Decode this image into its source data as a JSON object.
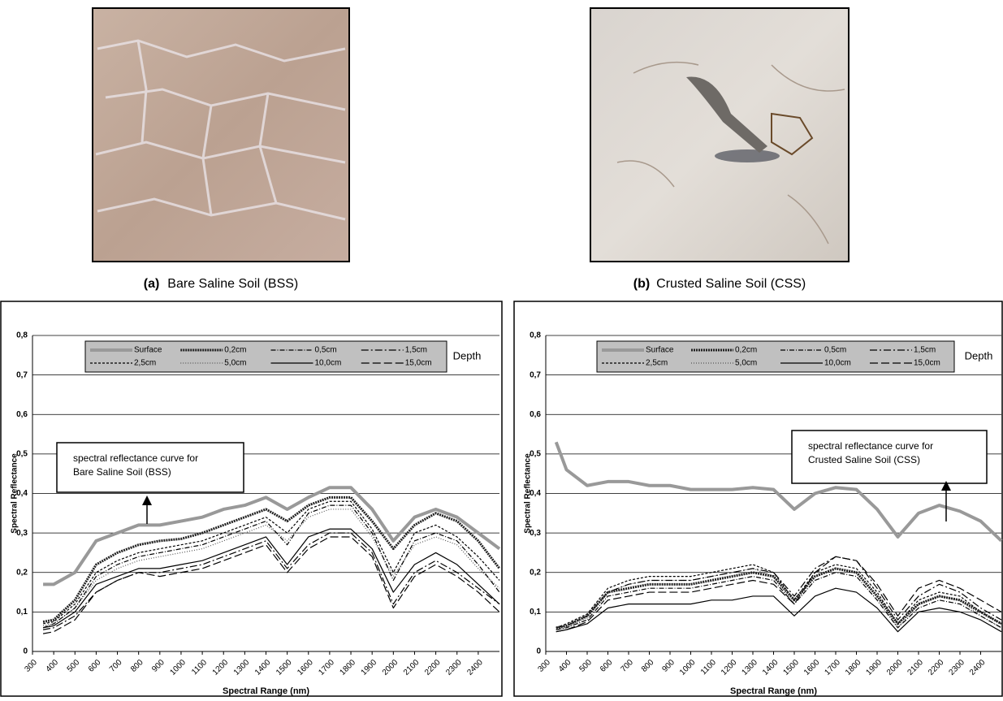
{
  "photos": [
    {
      "label": "(a)",
      "caption": "Bare Saline Soil (BSS)"
    },
    {
      "label": "(b)",
      "caption": "Crusted Saline Soil (CSS)"
    }
  ],
  "chart_data": [
    {
      "type": "line",
      "y_label": "Spectral Reflectance",
      "x_label": "Spectral Range (nm)",
      "legend_title": "Depth",
      "annotation": [
        "spectral reflectance curve for",
        "Bare Saline Soil (BSS)"
      ],
      "grid": true,
      "xlim": [
        300,
        2500
      ],
      "xticks": [
        300,
        400,
        500,
        600,
        700,
        800,
        900,
        1000,
        1100,
        1200,
        1300,
        1400,
        1500,
        1600,
        1700,
        1800,
        1900,
        2000,
        2100,
        2200,
        2300,
        2400
      ],
      "ylim": [
        0,
        0.8
      ],
      "yticks": [
        0,
        {
          "value": 0.1,
          "label": "0,1"
        },
        {
          "value": 0.2,
          "label": "0,2"
        },
        {
          "value": 0.3,
          "label": "0,3"
        },
        {
          "value": 0.4,
          "label": "0,4"
        },
        {
          "value": 0.5,
          "label": "0,5"
        },
        {
          "value": 0.6,
          "label": "0,6"
        },
        {
          "value": 0.7,
          "label": "0,7"
        },
        {
          "value": 0.8,
          "label": "0,8"
        }
      ],
      "x": [
        350,
        400,
        500,
        600,
        700,
        800,
        900,
        1000,
        1100,
        1200,
        1300,
        1400,
        1500,
        1600,
        1700,
        1800,
        1900,
        2000,
        2100,
        2200,
        2300,
        2400,
        2500
      ],
      "series": [
        {
          "name": "Surface",
          "color": "#999999",
          "style": "thick",
          "values": [
            0.17,
            0.17,
            0.2,
            0.28,
            0.3,
            0.32,
            0.32,
            0.33,
            0.34,
            0.36,
            0.37,
            0.39,
            0.36,
            0.39,
            0.415,
            0.415,
            0.36,
            0.28,
            0.34,
            0.36,
            0.34,
            0.3,
            0.26
          ]
        },
        {
          "name": "0,2cm",
          "color": "#222222",
          "style": "beaded",
          "values": [
            0.075,
            0.08,
            0.13,
            0.22,
            0.25,
            0.27,
            0.28,
            0.285,
            0.3,
            0.32,
            0.34,
            0.36,
            0.33,
            0.37,
            0.39,
            0.39,
            0.33,
            0.26,
            0.32,
            0.35,
            0.33,
            0.28,
            0.21
          ]
        },
        {
          "name": "0,5cm",
          "color": "#000000",
          "style": "dash-dot",
          "values": [
            0.06,
            0.07,
            0.11,
            0.19,
            0.22,
            0.24,
            0.25,
            0.26,
            0.27,
            0.29,
            0.31,
            0.33,
            0.27,
            0.35,
            0.37,
            0.37,
            0.3,
            0.18,
            0.28,
            0.3,
            0.28,
            0.22,
            0.15
          ]
        },
        {
          "name": "1,5cm",
          "color": "#000000",
          "style": "long-dash-dot",
          "values": [
            0.055,
            0.06,
            0.09,
            0.15,
            0.18,
            0.2,
            0.2,
            0.21,
            0.22,
            0.24,
            0.26,
            0.28,
            0.21,
            0.27,
            0.3,
            0.3,
            0.25,
            0.12,
            0.2,
            0.23,
            0.2,
            0.16,
            0.12
          ]
        },
        {
          "name": "2,5cm",
          "color": "#000000",
          "style": "dashed",
          "values": [
            0.07,
            0.075,
            0.12,
            0.2,
            0.23,
            0.25,
            0.26,
            0.27,
            0.28,
            0.3,
            0.32,
            0.34,
            0.3,
            0.36,
            0.38,
            0.38,
            0.31,
            0.2,
            0.3,
            0.32,
            0.29,
            0.24,
            0.18
          ]
        },
        {
          "name": "5,0cm",
          "color": "#555555",
          "style": "dotted",
          "values": [
            0.065,
            0.07,
            0.11,
            0.18,
            0.21,
            0.23,
            0.24,
            0.25,
            0.26,
            0.28,
            0.3,
            0.32,
            0.28,
            0.34,
            0.36,
            0.36,
            0.29,
            0.19,
            0.27,
            0.29,
            0.27,
            0.21,
            0.16
          ]
        },
        {
          "name": "10,0cm",
          "color": "#000000",
          "style": "solid",
          "values": [
            0.06,
            0.065,
            0.1,
            0.17,
            0.19,
            0.21,
            0.21,
            0.22,
            0.23,
            0.25,
            0.27,
            0.29,
            0.22,
            0.29,
            0.31,
            0.31,
            0.26,
            0.15,
            0.22,
            0.25,
            0.22,
            0.17,
            0.12
          ]
        },
        {
          "name": "15,0cm",
          "color": "#000000",
          "style": "long-dash",
          "values": [
            0.045,
            0.05,
            0.08,
            0.15,
            0.18,
            0.2,
            0.19,
            0.2,
            0.21,
            0.23,
            0.25,
            0.27,
            0.2,
            0.26,
            0.29,
            0.29,
            0.24,
            0.11,
            0.19,
            0.22,
            0.19,
            0.15,
            0.1
          ]
        }
      ]
    },
    {
      "type": "line",
      "y_label": "Spectral Reflectance",
      "x_label": "Spectral Range (nm)",
      "legend_title": "Depth",
      "annotation": [
        "spectral reflectance curve for",
        "Crusted Saline Soil (CSS)"
      ],
      "grid": true,
      "xlim": [
        300,
        2500
      ],
      "xticks": [
        300,
        400,
        500,
        600,
        700,
        800,
        900,
        1000,
        1100,
        1200,
        1300,
        1400,
        1500,
        1600,
        1700,
        1800,
        1900,
        2000,
        2100,
        2200,
        2300,
        2400
      ],
      "ylim": [
        0,
        0.8
      ],
      "yticks": [
        0,
        {
          "value": 0.1,
          "label": "0,1"
        },
        {
          "value": 0.2,
          "label": "0,2"
        },
        {
          "value": 0.3,
          "label": "0,3"
        },
        {
          "value": 0.4,
          "label": "0,4"
        },
        {
          "value": 0.5,
          "label": "0,5"
        },
        {
          "value": 0.6,
          "label": "0,6"
        },
        {
          "value": 0.7,
          "label": "0,7"
        },
        {
          "value": 0.8,
          "label": "0,8"
        }
      ],
      "x": [
        350,
        400,
        500,
        600,
        700,
        800,
        900,
        1000,
        1100,
        1200,
        1300,
        1400,
        1500,
        1600,
        1700,
        1800,
        1900,
        2000,
        2100,
        2200,
        2300,
        2400,
        2500
      ],
      "series": [
        {
          "name": "Surface",
          "color": "#999999",
          "style": "thick",
          "values": [
            0.53,
            0.46,
            0.42,
            0.43,
            0.43,
            0.42,
            0.42,
            0.41,
            0.41,
            0.41,
            0.415,
            0.41,
            0.36,
            0.4,
            0.415,
            0.41,
            0.36,
            0.29,
            0.35,
            0.37,
            0.355,
            0.33,
            0.28
          ]
        },
        {
          "name": "0,2cm",
          "color": "#222222",
          "style": "beaded",
          "values": [
            0.06,
            0.065,
            0.09,
            0.15,
            0.16,
            0.17,
            0.17,
            0.17,
            0.18,
            0.19,
            0.2,
            0.19,
            0.13,
            0.19,
            0.21,
            0.2,
            0.14,
            0.07,
            0.12,
            0.14,
            0.13,
            0.1,
            0.07
          ]
        },
        {
          "name": "0,5cm",
          "color": "#000000",
          "style": "dash-dot",
          "values": [
            0.055,
            0.06,
            0.08,
            0.14,
            0.15,
            0.16,
            0.16,
            0.16,
            0.17,
            0.18,
            0.19,
            0.18,
            0.12,
            0.18,
            0.2,
            0.19,
            0.13,
            0.06,
            0.11,
            0.13,
            0.12,
            0.09,
            0.06
          ]
        },
        {
          "name": "1,5cm",
          "color": "#000000",
          "style": "long-dash-dot",
          "values": [
            0.06,
            0.065,
            0.09,
            0.15,
            0.17,
            0.18,
            0.18,
            0.18,
            0.19,
            0.2,
            0.21,
            0.2,
            0.14,
            0.21,
            0.24,
            0.23,
            0.16,
            0.08,
            0.14,
            0.17,
            0.15,
            0.11,
            0.08
          ]
        },
        {
          "name": "2,5cm",
          "color": "#000000",
          "style": "dashed",
          "values": [
            0.06,
            0.07,
            0.095,
            0.16,
            0.18,
            0.19,
            0.19,
            0.19,
            0.2,
            0.21,
            0.22,
            0.2,
            0.13,
            0.2,
            0.22,
            0.21,
            0.15,
            0.07,
            0.13,
            0.15,
            0.14,
            0.1,
            0.07
          ]
        },
        {
          "name": "5,0cm",
          "color": "#555555",
          "style": "dotted",
          "values": [
            0.055,
            0.06,
            0.085,
            0.15,
            0.17,
            0.18,
            0.18,
            0.18,
            0.19,
            0.2,
            0.21,
            0.19,
            0.12,
            0.19,
            0.21,
            0.2,
            0.14,
            0.06,
            0.12,
            0.14,
            0.13,
            0.09,
            0.06
          ]
        },
        {
          "name": "10,0cm",
          "color": "#000000",
          "style": "solid",
          "values": [
            0.05,
            0.055,
            0.07,
            0.11,
            0.12,
            0.12,
            0.12,
            0.12,
            0.13,
            0.13,
            0.14,
            0.14,
            0.09,
            0.14,
            0.16,
            0.15,
            0.11,
            0.05,
            0.1,
            0.11,
            0.1,
            0.08,
            0.05
          ]
        },
        {
          "name": "15,0cm",
          "color": "#000000",
          "style": "long-dash",
          "values": [
            0.05,
            0.055,
            0.075,
            0.13,
            0.14,
            0.15,
            0.15,
            0.15,
            0.16,
            0.17,
            0.18,
            0.17,
            0.12,
            0.2,
            0.24,
            0.23,
            0.17,
            0.09,
            0.16,
            0.18,
            0.16,
            0.13,
            0.1
          ]
        }
      ]
    }
  ]
}
